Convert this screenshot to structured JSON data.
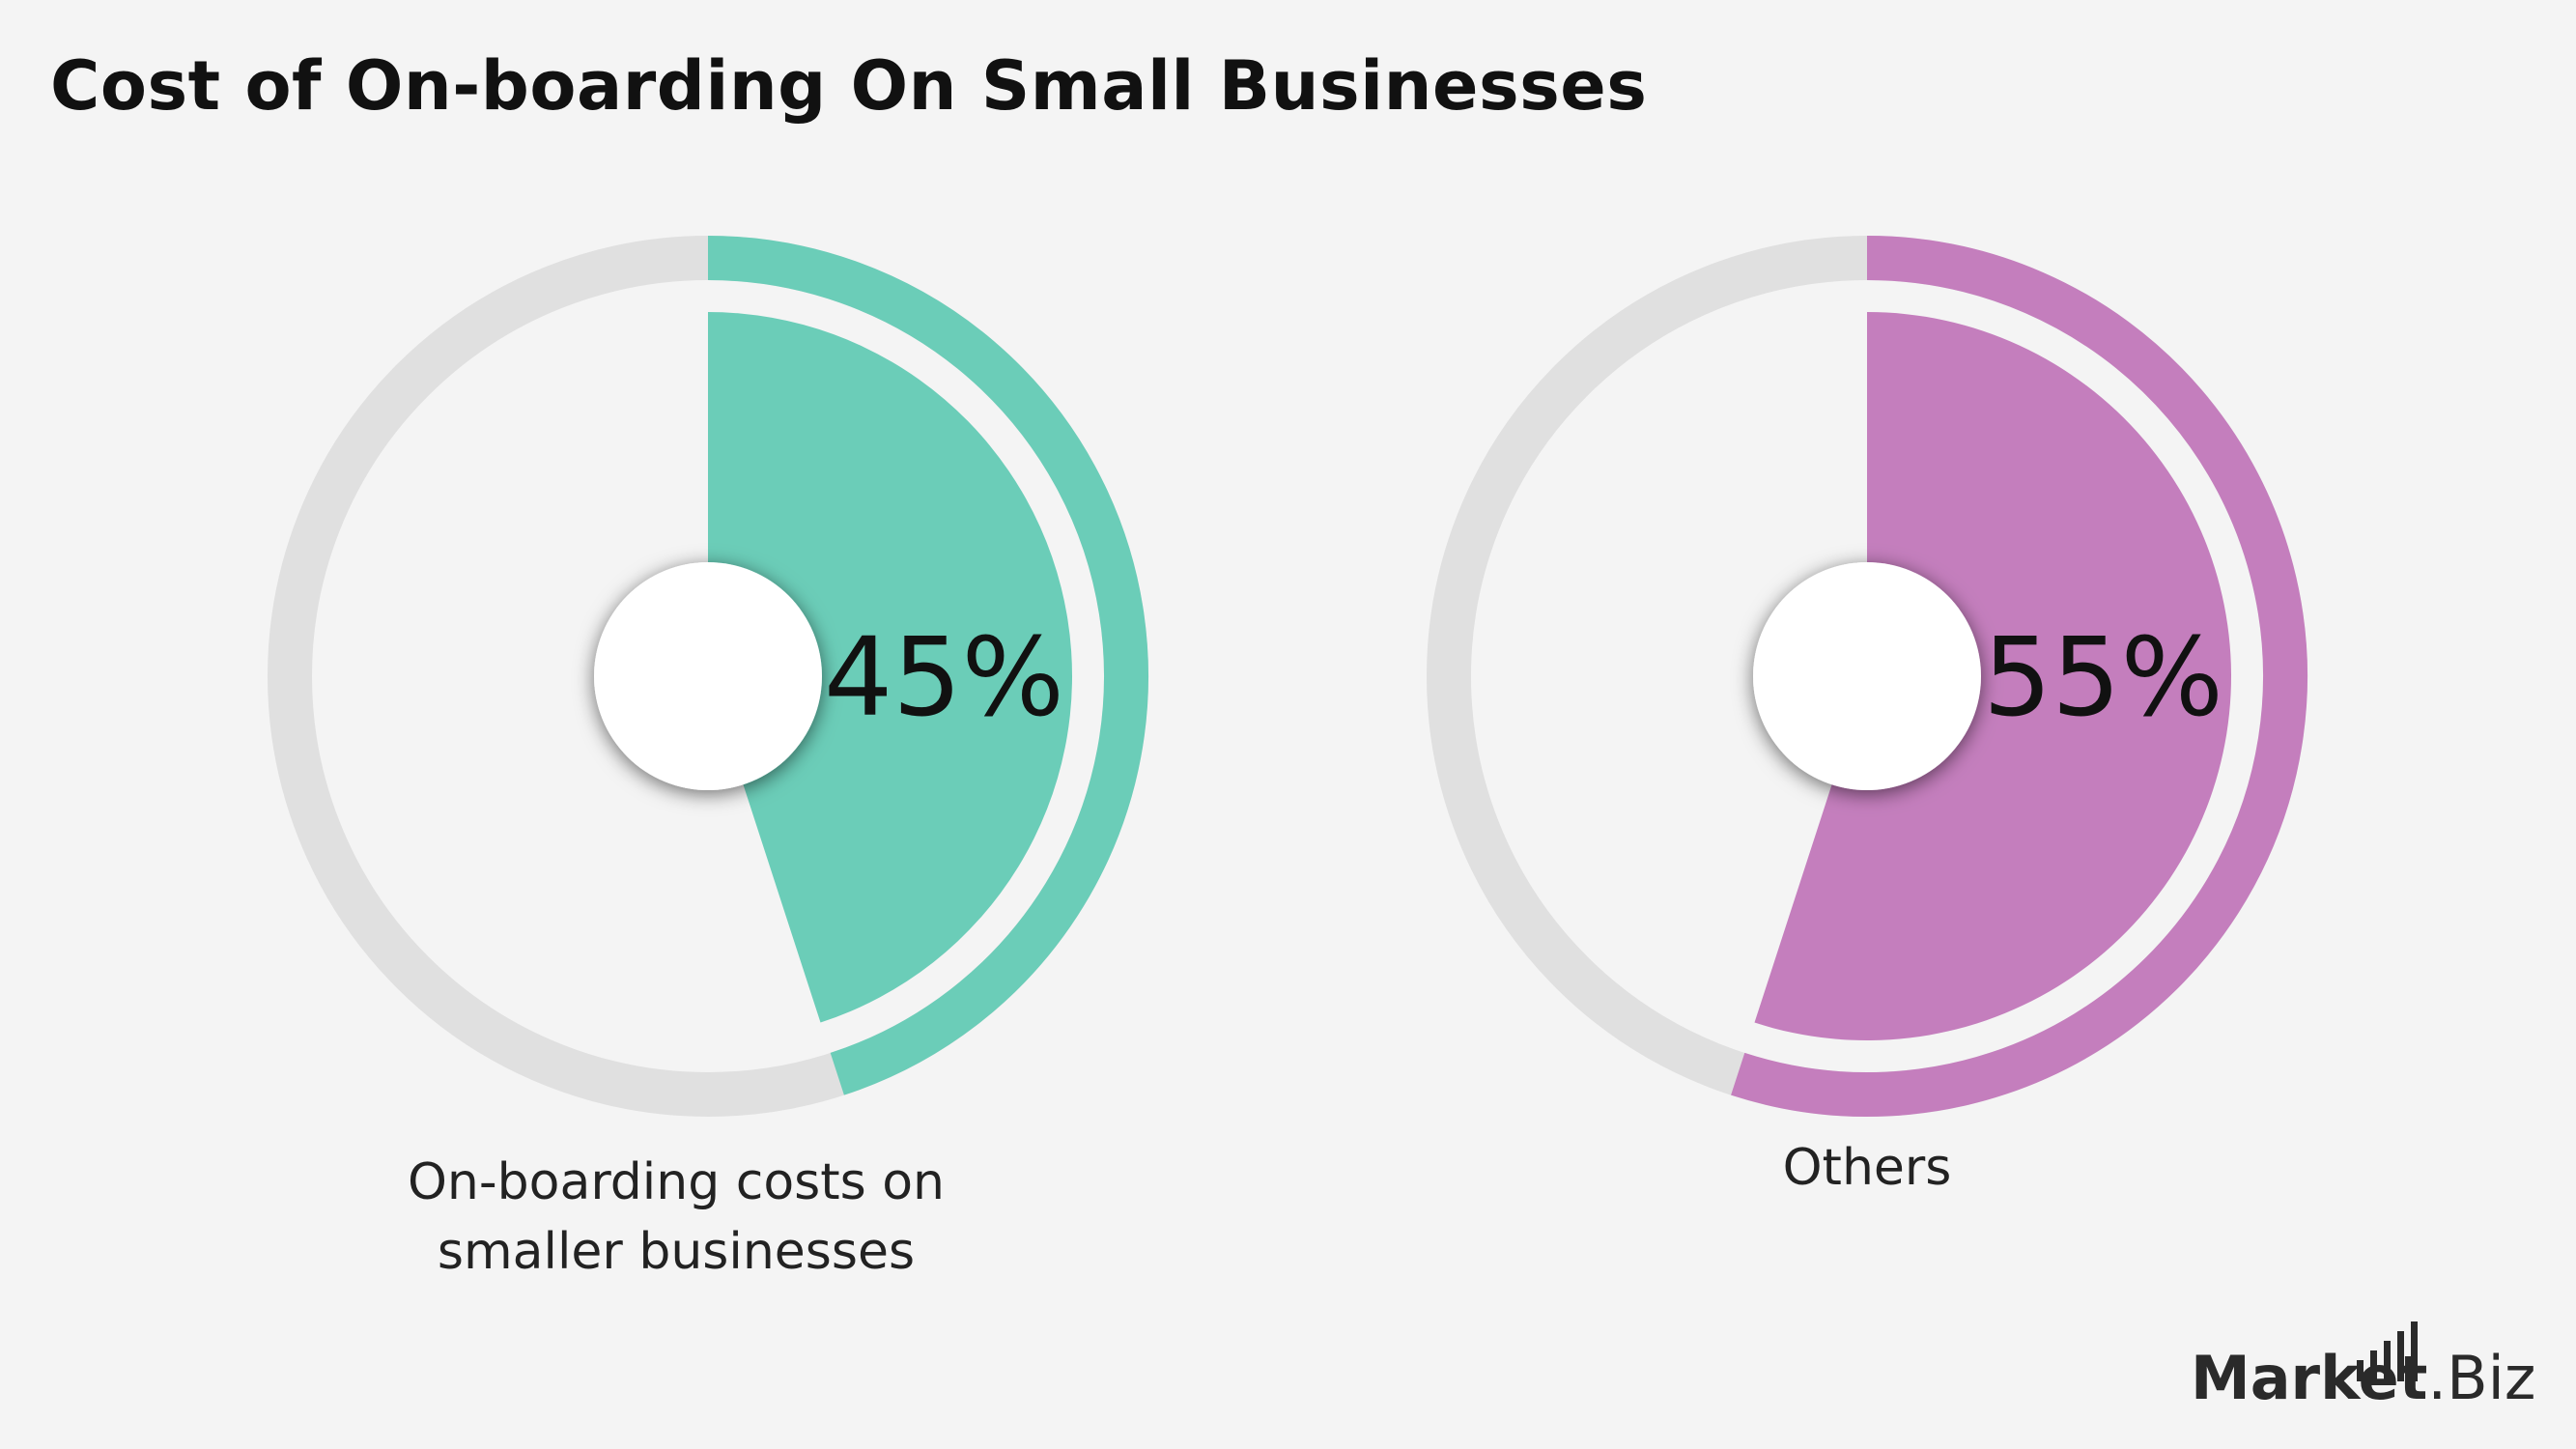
{
  "title": "Cost of On-boarding On Small Businesses",
  "chart_data": [
    {
      "type": "pie",
      "title": "",
      "slices": [
        {
          "label": "On-boarding costs on smaller businesses",
          "value": 45,
          "display": "45%"
        }
      ],
      "color": "#6bcdb8",
      "track_color": "#e0e0e0"
    },
    {
      "type": "pie",
      "title": "",
      "slices": [
        {
          "label": "Others",
          "value": 55,
          "display": "55%"
        }
      ],
      "color": "#c47ebd",
      "track_color": "#e0e0e0"
    }
  ],
  "labels": {
    "first_line1": "On-boarding costs on",
    "first_line2": "smaller businesses",
    "second": "Others"
  },
  "logo": {
    "brand": "Market",
    "suffix": ".Biz"
  }
}
